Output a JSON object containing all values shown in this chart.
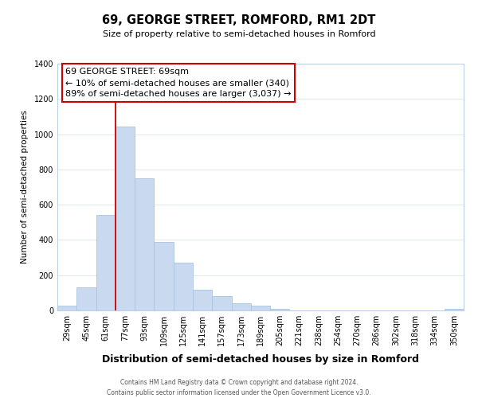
{
  "title": "69, GEORGE STREET, ROMFORD, RM1 2DT",
  "subtitle": "Size of property relative to semi-detached houses in Romford",
  "xlabel": "Distribution of semi-detached houses by size in Romford",
  "ylabel": "Number of semi-detached properties",
  "footer_line1": "Contains HM Land Registry data © Crown copyright and database right 2024.",
  "footer_line2": "Contains public sector information licensed under the Open Government Licence v3.0.",
  "bar_labels": [
    "29sqm",
    "45sqm",
    "61sqm",
    "77sqm",
    "93sqm",
    "109sqm",
    "125sqm",
    "141sqm",
    "157sqm",
    "173sqm",
    "189sqm",
    "205sqm",
    "221sqm",
    "238sqm",
    "254sqm",
    "270sqm",
    "286sqm",
    "302sqm",
    "318sqm",
    "334sqm",
    "350sqm"
  ],
  "bar_values": [
    25,
    130,
    540,
    1045,
    748,
    390,
    270,
    118,
    83,
    42,
    27,
    10,
    0,
    0,
    0,
    0,
    0,
    0,
    0,
    0,
    8
  ],
  "bar_color": "#c9d9f0",
  "bar_edge_color": "#a8c4e0",
  "highlight_color": "#cc0000",
  "ylim": [
    0,
    1400
  ],
  "yticks": [
    0,
    200,
    400,
    600,
    800,
    1000,
    1200,
    1400
  ],
  "annotation_title": "69 GEORGE STREET: 69sqm",
  "annotation_line1": "← 10% of semi-detached houses are smaller (340)",
  "annotation_line2": "89% of semi-detached houses are larger (3,037) →",
  "background_color": "#ffffff",
  "grid_color": "#dde8f0",
  "title_fontsize": 10.5,
  "subtitle_fontsize": 8,
  "ylabel_fontsize": 7.5,
  "xlabel_fontsize": 9,
  "tick_fontsize": 7,
  "annotation_fontsize": 8,
  "footer_fontsize": 5.5
}
